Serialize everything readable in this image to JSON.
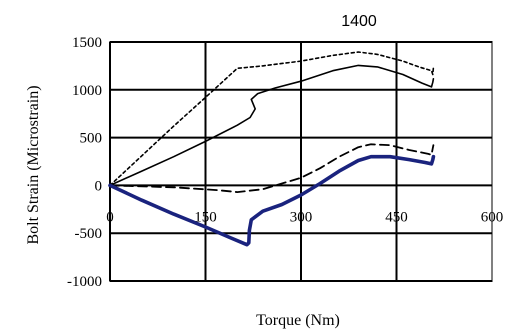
{
  "chart_data": {
    "type": "line",
    "title": "1400",
    "xlabel": "Torque (Nm)",
    "ylabel": "Bolt Strain (Microstrain)",
    "xlim": [
      0,
      600
    ],
    "ylim": [
      -1000,
      1500
    ],
    "xticks": [
      0,
      150,
      300,
      450,
      600
    ],
    "yticks": [
      1500,
      1000,
      500,
      0,
      -500,
      -1000
    ],
    "xtick_labels": [
      "0",
      "150",
      "300",
      "450",
      "600"
    ],
    "ytick_labels": [
      "1500",
      "1000",
      "500",
      "0",
      "-500",
      "-1000"
    ],
    "grid": true,
    "legend": "none",
    "series": [
      {
        "style": "dotted",
        "color": "#000000",
        "points": [
          [
            0,
            0
          ],
          [
            100,
            620
          ],
          [
            150,
            920
          ],
          [
            200,
            1225
          ],
          [
            240,
            1250
          ],
          [
            300,
            1300
          ],
          [
            350,
            1360
          ],
          [
            390,
            1395
          ],
          [
            420,
            1370
          ],
          [
            460,
            1300
          ],
          [
            485,
            1240
          ],
          [
            505,
            1200
          ],
          [
            507,
            1160
          ],
          [
            508,
            1230
          ]
        ]
      },
      {
        "style": "solid",
        "color": "#000000",
        "points": [
          [
            0,
            0
          ],
          [
            50,
            150
          ],
          [
            100,
            300
          ],
          [
            150,
            460
          ],
          [
            200,
            630
          ],
          [
            220,
            710
          ],
          [
            228,
            800
          ],
          [
            222,
            900
          ],
          [
            232,
            960
          ],
          [
            260,
            1020
          ],
          [
            300,
            1090
          ],
          [
            350,
            1200
          ],
          [
            390,
            1255
          ],
          [
            420,
            1240
          ],
          [
            460,
            1160
          ],
          [
            490,
            1070
          ],
          [
            505,
            1030
          ],
          [
            507,
            1080
          ],
          [
            508,
            1115
          ]
        ]
      },
      {
        "style": "dashed",
        "color": "#000000",
        "points": [
          [
            0,
            0
          ],
          [
            100,
            -20
          ],
          [
            170,
            -50
          ],
          [
            200,
            -70
          ],
          [
            240,
            -40
          ],
          [
            270,
            20
          ],
          [
            300,
            80
          ],
          [
            330,
            180
          ],
          [
            360,
            300
          ],
          [
            390,
            400
          ],
          [
            410,
            430
          ],
          [
            440,
            420
          ],
          [
            470,
            370
          ],
          [
            500,
            330
          ],
          [
            505,
            320
          ],
          [
            507,
            390
          ],
          [
            508,
            420
          ]
        ]
      },
      {
        "style": "solid-thick",
        "color": "#1a237e",
        "points": [
          [
            0,
            0
          ],
          [
            50,
            -155
          ],
          [
            100,
            -300
          ],
          [
            150,
            -435
          ],
          [
            190,
            -550
          ],
          [
            215,
            -620
          ],
          [
            218,
            -600
          ],
          [
            219,
            -470
          ],
          [
            222,
            -360
          ],
          [
            240,
            -270
          ],
          [
            270,
            -200
          ],
          [
            300,
            -100
          ],
          [
            330,
            20
          ],
          [
            360,
            150
          ],
          [
            390,
            260
          ],
          [
            410,
            300
          ],
          [
            440,
            300
          ],
          [
            470,
            270
          ],
          [
            495,
            240
          ],
          [
            505,
            225
          ],
          [
            507,
            270
          ],
          [
            508,
            300
          ]
        ]
      }
    ]
  }
}
